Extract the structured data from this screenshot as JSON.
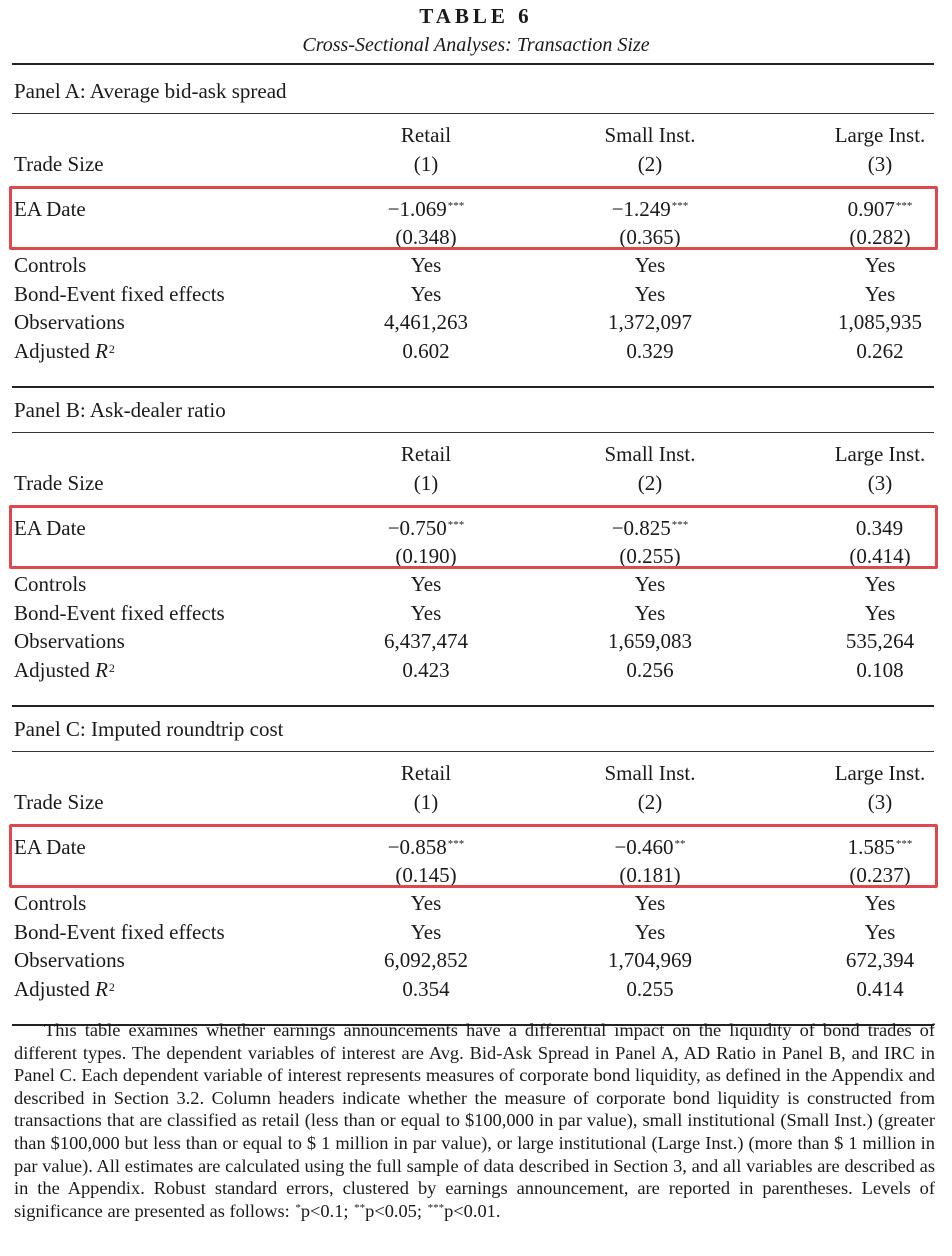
{
  "table_title": "TABLE 6",
  "table_subtitle": "Cross-Sectional Analyses: Transaction Size",
  "column_headers": {
    "trade_size_label": "Trade Size",
    "names": [
      "Retail",
      "Small Inst.",
      "Large Inst."
    ],
    "numbers": [
      "(1)",
      "(2)",
      "(3)"
    ]
  },
  "row_labels": {
    "ea_date": "EA Date",
    "controls": "Controls",
    "fixed_effects": "Bond-Event fixed effects",
    "observations": "Observations",
    "adj_r2_prefix": "Adjusted ",
    "adj_r2_var": "R",
    "adj_r2_sup": "2"
  },
  "panels": [
    {
      "title": "Panel A: Average bid-ask spread",
      "coef": [
        "−1.069",
        "−1.249",
        "0.907"
      ],
      "stars": [
        "***",
        "***",
        "***"
      ],
      "se": [
        "(0.348)",
        "(0.365)",
        "(0.282)"
      ],
      "controls": [
        "Yes",
        "Yes",
        "Yes"
      ],
      "fixed_effects": [
        "Yes",
        "Yes",
        "Yes"
      ],
      "observations": [
        "4,461,263",
        "1,372,097",
        "1,085,935"
      ],
      "adj_r2": [
        "0.602",
        "0.329",
        "0.262"
      ]
    },
    {
      "title": "Panel B: Ask-dealer ratio",
      "coef": [
        "−0.750",
        "−0.825",
        "0.349"
      ],
      "stars": [
        "***",
        "***",
        ""
      ],
      "se": [
        "(0.190)",
        "(0.255)",
        "(0.414)"
      ],
      "controls": [
        "Yes",
        "Yes",
        "Yes"
      ],
      "fixed_effects": [
        "Yes",
        "Yes",
        "Yes"
      ],
      "observations": [
        "6,437,474",
        "1,659,083",
        "535,264"
      ],
      "adj_r2": [
        "0.423",
        "0.256",
        "0.108"
      ]
    },
    {
      "title": "Panel C: Imputed roundtrip cost",
      "coef": [
        "−0.858",
        "−0.460",
        "1.585"
      ],
      "stars": [
        "***",
        "**",
        "***"
      ],
      "se": [
        "(0.145)",
        "(0.181)",
        "(0.237)"
      ],
      "controls": [
        "Yes",
        "Yes",
        "Yes"
      ],
      "fixed_effects": [
        "Yes",
        "Yes",
        "Yes"
      ],
      "observations": [
        "6,092,852",
        "1,704,969",
        "672,394"
      ],
      "adj_r2": [
        "0.354",
        "0.255",
        "0.414"
      ]
    }
  ],
  "note": {
    "body": "This table examines whether earnings announcements have a differential impact on the liquidity of bond trades of different types. The dependent variables of interest are Avg. Bid-Ask Spread in Panel A, AD Ratio in Panel B, and IRC in Panel C. Each dependent variable of interest represents measures of corporate bond liquidity, as defined in the Appendix and described in Section 3.2. Column headers indicate whether the measure of corporate bond liquidity is constructed from transactions that are classified as retail (less than or equal to $100,000 in par value), small institutional (Small Inst.) (greater than $100,000 but less than or equal to $ 1 million in par value), or large institutional (Large Inst.) (more than $ 1 million in par value). All estimates are calculated using the full sample of data described in Section 3, and all variables are described as in the Appendix. Robust standard errors, clustered by earnings announcement, are reported in parentheses. Levels of significance are presented as follows: ",
    "sig1_stars": "*",
    "sig1_text": "p<0.1; ",
    "sig2_stars": "**",
    "sig2_text": "p<0.05; ",
    "sig3_stars": "***",
    "sig3_text": "p<0.01."
  },
  "highlight_color": "#e0474c"
}
